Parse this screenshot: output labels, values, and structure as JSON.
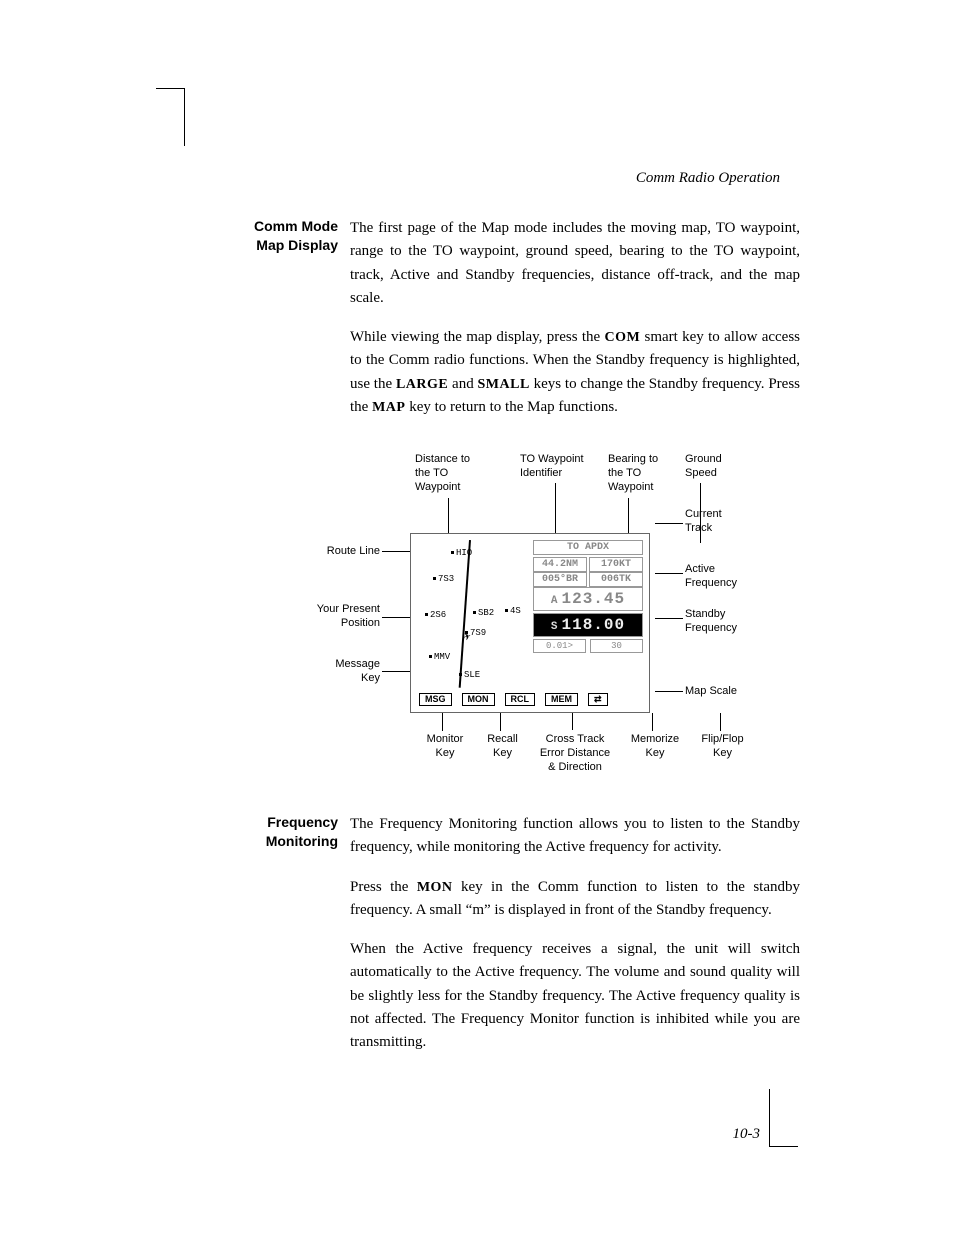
{
  "runningHead": "Comm Radio Operation",
  "pageNumber": "10-3",
  "sections": {
    "commMode": {
      "heading1": "Comm Mode",
      "heading2": "Map Display",
      "p1": "The first page of the Map mode includes the moving map, TO waypoint, range to the TO waypoint, ground speed, bearing to the TO waypoint, track, Active and Standby frequencies, distance off-track, and the map scale.",
      "p2a": "While viewing the map display, press the ",
      "p2com": "COM",
      "p2b": " smart key to allow access to the Comm radio functions. When the Standby frequency is highlighted, use the ",
      "p2large": "LARGE",
      "p2and": " and ",
      "p2small": "SMALL",
      "p2c": " keys to change the Standby frequency. Press the ",
      "p2map": "MAP",
      "p2d": " key to return to the Map functions."
    },
    "freqMon": {
      "heading1": "Frequency",
      "heading2": "Monitoring",
      "p1": "The Frequency Monitoring function allows you to listen to the Standby frequency, while monitoring the Active frequency for activity.",
      "p2a": "Press the ",
      "p2mon": "MON",
      "p2b": " key in the Comm function to listen to the standby frequency. A small “m” is displayed in front of the Standby frequency.",
      "p3": "When the Active frequency receives a signal, the unit will switch automatically to the Active frequency. The volume and sound quality will be slightly less for the Standby frequency. The Active frequency quality is not affected. The Frequency Monitor function is inhibited while you are transmitting."
    }
  },
  "figure": {
    "device": {
      "toLabel": "TO APDX",
      "distance": "44.2NM",
      "speed": "170KT",
      "bearing": "005°BR",
      "track": "006TK",
      "activeFreq": "123.45",
      "standbyFreq": "118.00",
      "xtk": "0.01>",
      "scale": "30",
      "waypoints": {
        "hio": "HIO",
        "w7s3": "7S3",
        "w2s6": "2S6",
        "sb2": "SB2",
        "w4s": "4S",
        "w7s9": "7S9",
        "mmv": "MMV",
        "sle": "SLE"
      },
      "keys": {
        "msg": "MSG",
        "mon": "MON",
        "rcl": "RCL",
        "mem": "MEM",
        "flip": "⇄"
      }
    },
    "callouts": {
      "distTo": "Distance to\nthe TO\nWaypoint",
      "toIdent": "TO Waypoint\nIdentifier",
      "brgTo": "Bearing to\nthe TO\nWaypoint",
      "gs": "Ground\nSpeed",
      "curTrk": "Current\nTrack",
      "routeLine": "Route Line",
      "activeFreq": "Active\nFrequency",
      "pos": "Your Present\nPosition",
      "stbyFreq": "Standby\nFrequency",
      "msgKey": "Message\nKey",
      "mapScale": "Map Scale",
      "monKey": "Monitor\nKey",
      "rclKey": "Recall\nKey",
      "xtk": "Cross Track\nError Distance\n& Direction",
      "memKey": "Memorize\nKey",
      "flipKey": "Flip/Flop\nKey"
    }
  }
}
